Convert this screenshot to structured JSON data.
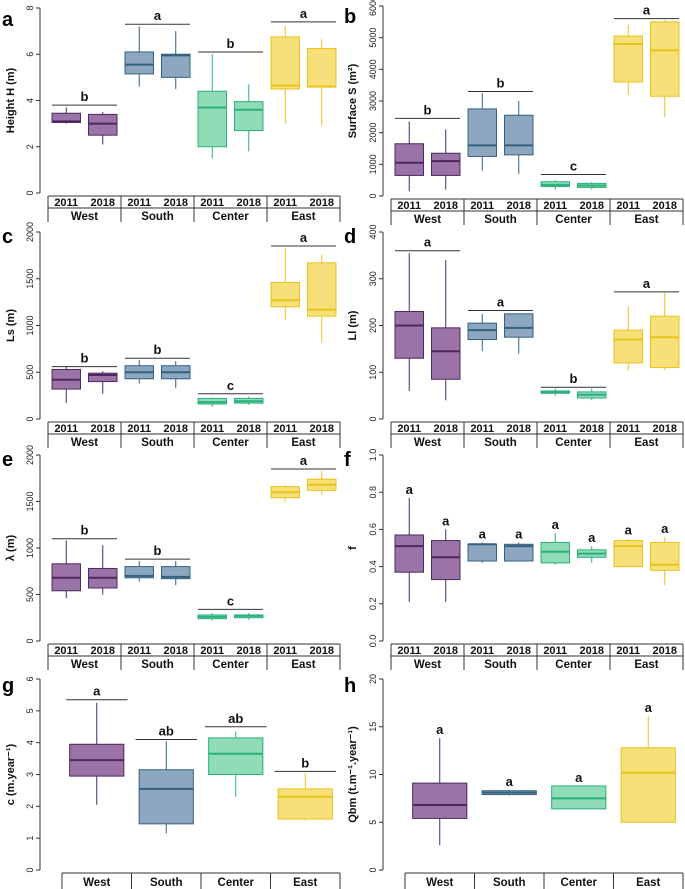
{
  "colors": {
    "West": {
      "fill": "#9a74a6",
      "stroke": "#4e2762"
    },
    "South": {
      "fill": "#8ea7c0",
      "stroke": "#33617f"
    },
    "Center": {
      "fill": "#8fdcb6",
      "stroke": "#2bb07c"
    },
    "East": {
      "fill": "#f7e07a",
      "stroke": "#e9c21a"
    }
  },
  "chart_data": [
    {
      "id": "a",
      "panel_label": "a",
      "type": "box",
      "ylabel": "Height H (m)",
      "ylim": [
        0,
        8
      ],
      "yticks": [
        0,
        2,
        4,
        6,
        8
      ],
      "years": [
        "2011",
        "2018"
      ],
      "groups": [
        "West",
        "South",
        "Center",
        "East"
      ],
      "boxes": [
        {
          "group": "West",
          "year": "2011",
          "stats": [
            3.0,
            3.05,
            3.1,
            3.45,
            3.7
          ]
        },
        {
          "group": "West",
          "year": "2018",
          "stats": [
            2.1,
            2.5,
            3.0,
            3.4,
            3.5
          ]
        },
        {
          "group": "South",
          "year": "2011",
          "stats": [
            4.6,
            5.15,
            5.55,
            6.1,
            7.2
          ]
        },
        {
          "group": "South",
          "year": "2018",
          "stats": [
            4.5,
            5.0,
            5.95,
            6.0,
            7.0
          ]
        },
        {
          "group": "Center",
          "year": "2011",
          "stats": [
            1.5,
            2.0,
            3.7,
            4.4,
            6.0
          ]
        },
        {
          "group": "Center",
          "year": "2018",
          "stats": [
            1.8,
            2.7,
            3.6,
            3.95,
            4.7
          ]
        },
        {
          "group": "East",
          "year": "2011",
          "stats": [
            3.0,
            4.5,
            4.65,
            6.75,
            7.2
          ]
        },
        {
          "group": "East",
          "year": "2018",
          "stats": [
            2.9,
            4.6,
            4.6,
            6.25,
            6.65
          ]
        }
      ],
      "letters": [
        {
          "label": "b",
          "y": 3.8,
          "from": "West",
          "to": "West"
        },
        {
          "label": "a",
          "y": 7.3,
          "from": "South",
          "to": "South"
        },
        {
          "label": "b",
          "y": 6.1,
          "from": "Center",
          "to": "Center"
        },
        {
          "label": "a",
          "y": 7.4,
          "from": "East",
          "to": "East"
        }
      ]
    },
    {
      "id": "b",
      "panel_label": "b",
      "type": "box",
      "ylabel": "Surface S (m²)",
      "ylim": [
        0,
        6000
      ],
      "yticks": [
        0,
        1000,
        2000,
        3000,
        4000,
        5000,
        6000
      ],
      "years": [
        "2011",
        "2018"
      ],
      "groups": [
        "West",
        "South",
        "Center",
        "East"
      ],
      "boxes": [
        {
          "group": "West",
          "year": "2011",
          "stats": [
            150,
            650,
            1050,
            1650,
            2350
          ]
        },
        {
          "group": "West",
          "year": "2018",
          "stats": [
            200,
            650,
            1100,
            1350,
            2100
          ]
        },
        {
          "group": "South",
          "year": "2011",
          "stats": [
            800,
            1250,
            1600,
            2750,
            3250
          ]
        },
        {
          "group": "South",
          "year": "2018",
          "stats": [
            700,
            1300,
            1600,
            2550,
            3000
          ]
        },
        {
          "group": "Center",
          "year": "2011",
          "stats": [
            200,
            300,
            350,
            450,
            500
          ]
        },
        {
          "group": "Center",
          "year": "2018",
          "stats": [
            200,
            270,
            330,
            400,
            450
          ]
        },
        {
          "group": "East",
          "year": "2011",
          "stats": [
            3200,
            3600,
            4800,
            5050,
            5400
          ]
        },
        {
          "group": "East",
          "year": "2018",
          "stats": [
            2500,
            3150,
            4600,
            5500,
            5550
          ]
        }
      ],
      "letters": [
        {
          "label": "b",
          "y": 2450,
          "from": "West",
          "to": "West"
        },
        {
          "label": "b",
          "y": 3300,
          "from": "South",
          "to": "South"
        },
        {
          "label": "c",
          "y": 680,
          "from": "Center",
          "to": "Center"
        },
        {
          "label": "a",
          "y": 5600,
          "from": "East",
          "to": "East"
        }
      ]
    },
    {
      "id": "c",
      "panel_label": "c",
      "type": "box",
      "ylabel": "Ls (m)",
      "ylim": [
        0,
        2000
      ],
      "yticks": [
        0,
        500,
        1000,
        1500,
        2000
      ],
      "years": [
        "2011",
        "2018"
      ],
      "groups": [
        "West",
        "South",
        "Center",
        "East"
      ],
      "boxes": [
        {
          "group": "West",
          "year": "2011",
          "stats": [
            170,
            320,
            420,
            530,
            560
          ]
        },
        {
          "group": "West",
          "year": "2018",
          "stats": [
            270,
            400,
            470,
            490,
            510
          ]
        },
        {
          "group": "South",
          "year": "2011",
          "stats": [
            380,
            430,
            500,
            570,
            630
          ]
        },
        {
          "group": "South",
          "year": "2018",
          "stats": [
            330,
            430,
            500,
            570,
            620
          ]
        },
        {
          "group": "Center",
          "year": "2011",
          "stats": [
            130,
            160,
            180,
            220,
            230
          ]
        },
        {
          "group": "Center",
          "year": "2018",
          "stats": [
            150,
            170,
            190,
            220,
            240
          ]
        },
        {
          "group": "East",
          "year": "2011",
          "stats": [
            1060,
            1200,
            1270,
            1460,
            1830
          ]
        },
        {
          "group": "East",
          "year": "2018",
          "stats": [
            820,
            1100,
            1170,
            1670,
            1760
          ]
        }
      ],
      "letters": [
        {
          "label": "b",
          "y": 560,
          "from": "West",
          "to": "West"
        },
        {
          "label": "b",
          "y": 650,
          "from": "South",
          "to": "South"
        },
        {
          "label": "c",
          "y": 270,
          "from": "Center",
          "to": "Center"
        },
        {
          "label": "a",
          "y": 1850,
          "from": "East",
          "to": "East"
        }
      ]
    },
    {
      "id": "d",
      "panel_label": "d",
      "type": "box",
      "ylabel": "Ll (m)",
      "ylim": [
        0,
        400
      ],
      "yticks": [
        0,
        100,
        200,
        300,
        400
      ],
      "years": [
        "2011",
        "2018"
      ],
      "groups": [
        "West",
        "South",
        "Center",
        "East"
      ],
      "boxes": [
        {
          "group": "West",
          "year": "2011",
          "stats": [
            60,
            130,
            200,
            230,
            355
          ]
        },
        {
          "group": "West",
          "year": "2018",
          "stats": [
            40,
            85,
            145,
            195,
            340
          ]
        },
        {
          "group": "South",
          "year": "2011",
          "stats": [
            145,
            170,
            190,
            205,
            225
          ]
        },
        {
          "group": "South",
          "year": "2018",
          "stats": [
            140,
            175,
            195,
            225,
            225
          ]
        },
        {
          "group": "Center",
          "year": "2011",
          "stats": [
            50,
            55,
            57,
            60,
            65
          ]
        },
        {
          "group": "Center",
          "year": "2018",
          "stats": [
            40,
            45,
            52,
            58,
            65
          ]
        },
        {
          "group": "East",
          "year": "2011",
          "stats": [
            105,
            120,
            170,
            190,
            240
          ]
        },
        {
          "group": "East",
          "year": "2018",
          "stats": [
            105,
            110,
            175,
            220,
            270
          ]
        }
      ],
      "letters": [
        {
          "label": "a",
          "y": 360,
          "from": "West",
          "to": "West"
        },
        {
          "label": "a",
          "y": 232,
          "from": "South",
          "to": "South"
        },
        {
          "label": "b",
          "y": 68,
          "from": "Center",
          "to": "Center"
        },
        {
          "label": "a",
          "y": 272,
          "from": "East",
          "to": "East"
        }
      ]
    },
    {
      "id": "e",
      "panel_label": "e",
      "type": "box",
      "ylabel": "λ (m)",
      "ylim": [
        0,
        2000
      ],
      "yticks": [
        0,
        500,
        1000,
        1500,
        2000
      ],
      "years": [
        "2011",
        "2018"
      ],
      "groups": [
        "West",
        "South",
        "Center",
        "East"
      ],
      "boxes": [
        {
          "group": "West",
          "year": "2011",
          "stats": [
            460,
            540,
            680,
            830,
            1080
          ]
        },
        {
          "group": "West",
          "year": "2018",
          "stats": [
            500,
            570,
            680,
            780,
            1030
          ]
        },
        {
          "group": "South",
          "year": "2011",
          "stats": [
            640,
            680,
            700,
            800,
            860
          ]
        },
        {
          "group": "South",
          "year": "2018",
          "stats": [
            600,
            670,
            690,
            800,
            860
          ]
        },
        {
          "group": "Center",
          "year": "2011",
          "stats": [
            220,
            240,
            260,
            280,
            300
          ]
        },
        {
          "group": "Center",
          "year": "2018",
          "stats": [
            230,
            250,
            270,
            280,
            300
          ]
        },
        {
          "group": "East",
          "year": "2011",
          "stats": [
            1500,
            1540,
            1600,
            1660,
            1680
          ]
        },
        {
          "group": "East",
          "year": "2018",
          "stats": [
            1570,
            1620,
            1680,
            1740,
            1830
          ]
        }
      ],
      "letters": [
        {
          "label": "b",
          "y": 1100,
          "from": "West",
          "to": "West"
        },
        {
          "label": "b",
          "y": 880,
          "from": "South",
          "to": "South"
        },
        {
          "label": "c",
          "y": 340,
          "from": "Center",
          "to": "Center"
        },
        {
          "label": "a",
          "y": 1850,
          "from": "East",
          "to": "East"
        }
      ]
    },
    {
      "id": "f",
      "panel_label": "f",
      "type": "box",
      "ylabel": "f",
      "ylim": [
        0,
        1.0
      ],
      "yticks": [
        0.0,
        0.2,
        0.4,
        0.6,
        0.8,
        1.0
      ],
      "years": [
        "2011",
        "2018"
      ],
      "groups": [
        "West",
        "South",
        "Center",
        "East"
      ],
      "boxes": [
        {
          "group": "West",
          "year": "2011",
          "stats": [
            0.21,
            0.37,
            0.51,
            0.57,
            0.77
          ]
        },
        {
          "group": "West",
          "year": "2018",
          "stats": [
            0.21,
            0.33,
            0.45,
            0.54,
            0.6
          ]
        },
        {
          "group": "South",
          "year": "2011",
          "stats": [
            0.42,
            0.43,
            0.52,
            0.52,
            0.53
          ]
        },
        {
          "group": "South",
          "year": "2018",
          "stats": [
            0.43,
            0.43,
            0.51,
            0.52,
            0.53
          ]
        },
        {
          "group": "Center",
          "year": "2011",
          "stats": [
            0.41,
            0.42,
            0.48,
            0.53,
            0.58
          ]
        },
        {
          "group": "Center",
          "year": "2018",
          "stats": [
            0.42,
            0.45,
            0.47,
            0.49,
            0.51
          ]
        },
        {
          "group": "East",
          "year": "2011",
          "stats": [
            0.4,
            0.4,
            0.51,
            0.54,
            0.55
          ]
        },
        {
          "group": "East",
          "year": "2018",
          "stats": [
            0.3,
            0.38,
            0.41,
            0.53,
            0.56
          ]
        }
      ],
      "letters_individual": [
        "a",
        "a",
        "a",
        "a",
        "a",
        "a",
        "a",
        "a"
      ]
    },
    {
      "id": "g",
      "panel_label": "g",
      "type": "box",
      "ylabel": "c (m.year⁻¹)",
      "ylim": [
        0,
        6
      ],
      "yticks": [
        0,
        1,
        2,
        3,
        4,
        5,
        6
      ],
      "years": [],
      "groups": [
        "West",
        "South",
        "Center",
        "East"
      ],
      "boxes": [
        {
          "group": "West",
          "stats": [
            2.05,
            2.95,
            3.45,
            3.95,
            5.25
          ]
        },
        {
          "group": "South",
          "stats": [
            1.15,
            1.45,
            2.55,
            3.15,
            4.05
          ]
        },
        {
          "group": "Center",
          "stats": [
            2.3,
            3.0,
            3.65,
            4.15,
            4.35
          ]
        },
        {
          "group": "East",
          "stats": [
            1.55,
            1.6,
            2.3,
            2.55,
            3.05
          ]
        }
      ],
      "letters": [
        {
          "label": "a",
          "y": 5.35,
          "from": "West",
          "to": "West"
        },
        {
          "label": "ab",
          "y": 4.1,
          "from": "South",
          "to": "South"
        },
        {
          "label": "ab",
          "y": 4.5,
          "from": "Center",
          "to": "Center"
        },
        {
          "label": "b",
          "y": 3.1,
          "from": "East",
          "to": "East"
        }
      ]
    },
    {
      "id": "h",
      "panel_label": "h",
      "type": "box",
      "ylabel": "Qbm (t.m⁻¹.year⁻¹)",
      "ylim": [
        0,
        20
      ],
      "yticks": [
        0,
        5,
        10,
        15,
        20
      ],
      "years": [],
      "groups": [
        "West",
        "South",
        "Center",
        "East"
      ],
      "boxes": [
        {
          "group": "West",
          "stats": [
            2.6,
            5.4,
            6.8,
            9.1,
            13.8
          ]
        },
        {
          "group": "South",
          "stats": [
            7.8,
            7.9,
            8.1,
            8.3,
            8.4
          ]
        },
        {
          "group": "Center",
          "stats": [
            6.4,
            6.4,
            7.5,
            8.8,
            8.8
          ]
        },
        {
          "group": "East",
          "stats": [
            5.0,
            5.0,
            10.2,
            12.8,
            16.1
          ]
        }
      ],
      "letters_individual": [
        "a",
        "a",
        "a",
        "a"
      ]
    }
  ]
}
